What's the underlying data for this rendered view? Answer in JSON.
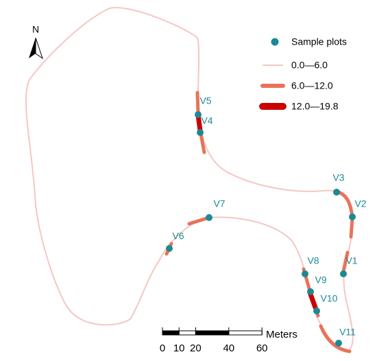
{
  "north": "N",
  "legend": {
    "sample": "Sample plots",
    "classes": [
      "0.0—6.0",
      "6.0—12.0",
      "12.0—19.8"
    ]
  },
  "plots": [
    "V1",
    "V2",
    "V3",
    "V4",
    "V5",
    "V6",
    "V7",
    "V8",
    "V9",
    "V10",
    "V11"
  ],
  "scale_bar": {
    "unit": "Meters",
    "ticks": [
      0,
      10,
      20,
      40,
      60
    ]
  }
}
